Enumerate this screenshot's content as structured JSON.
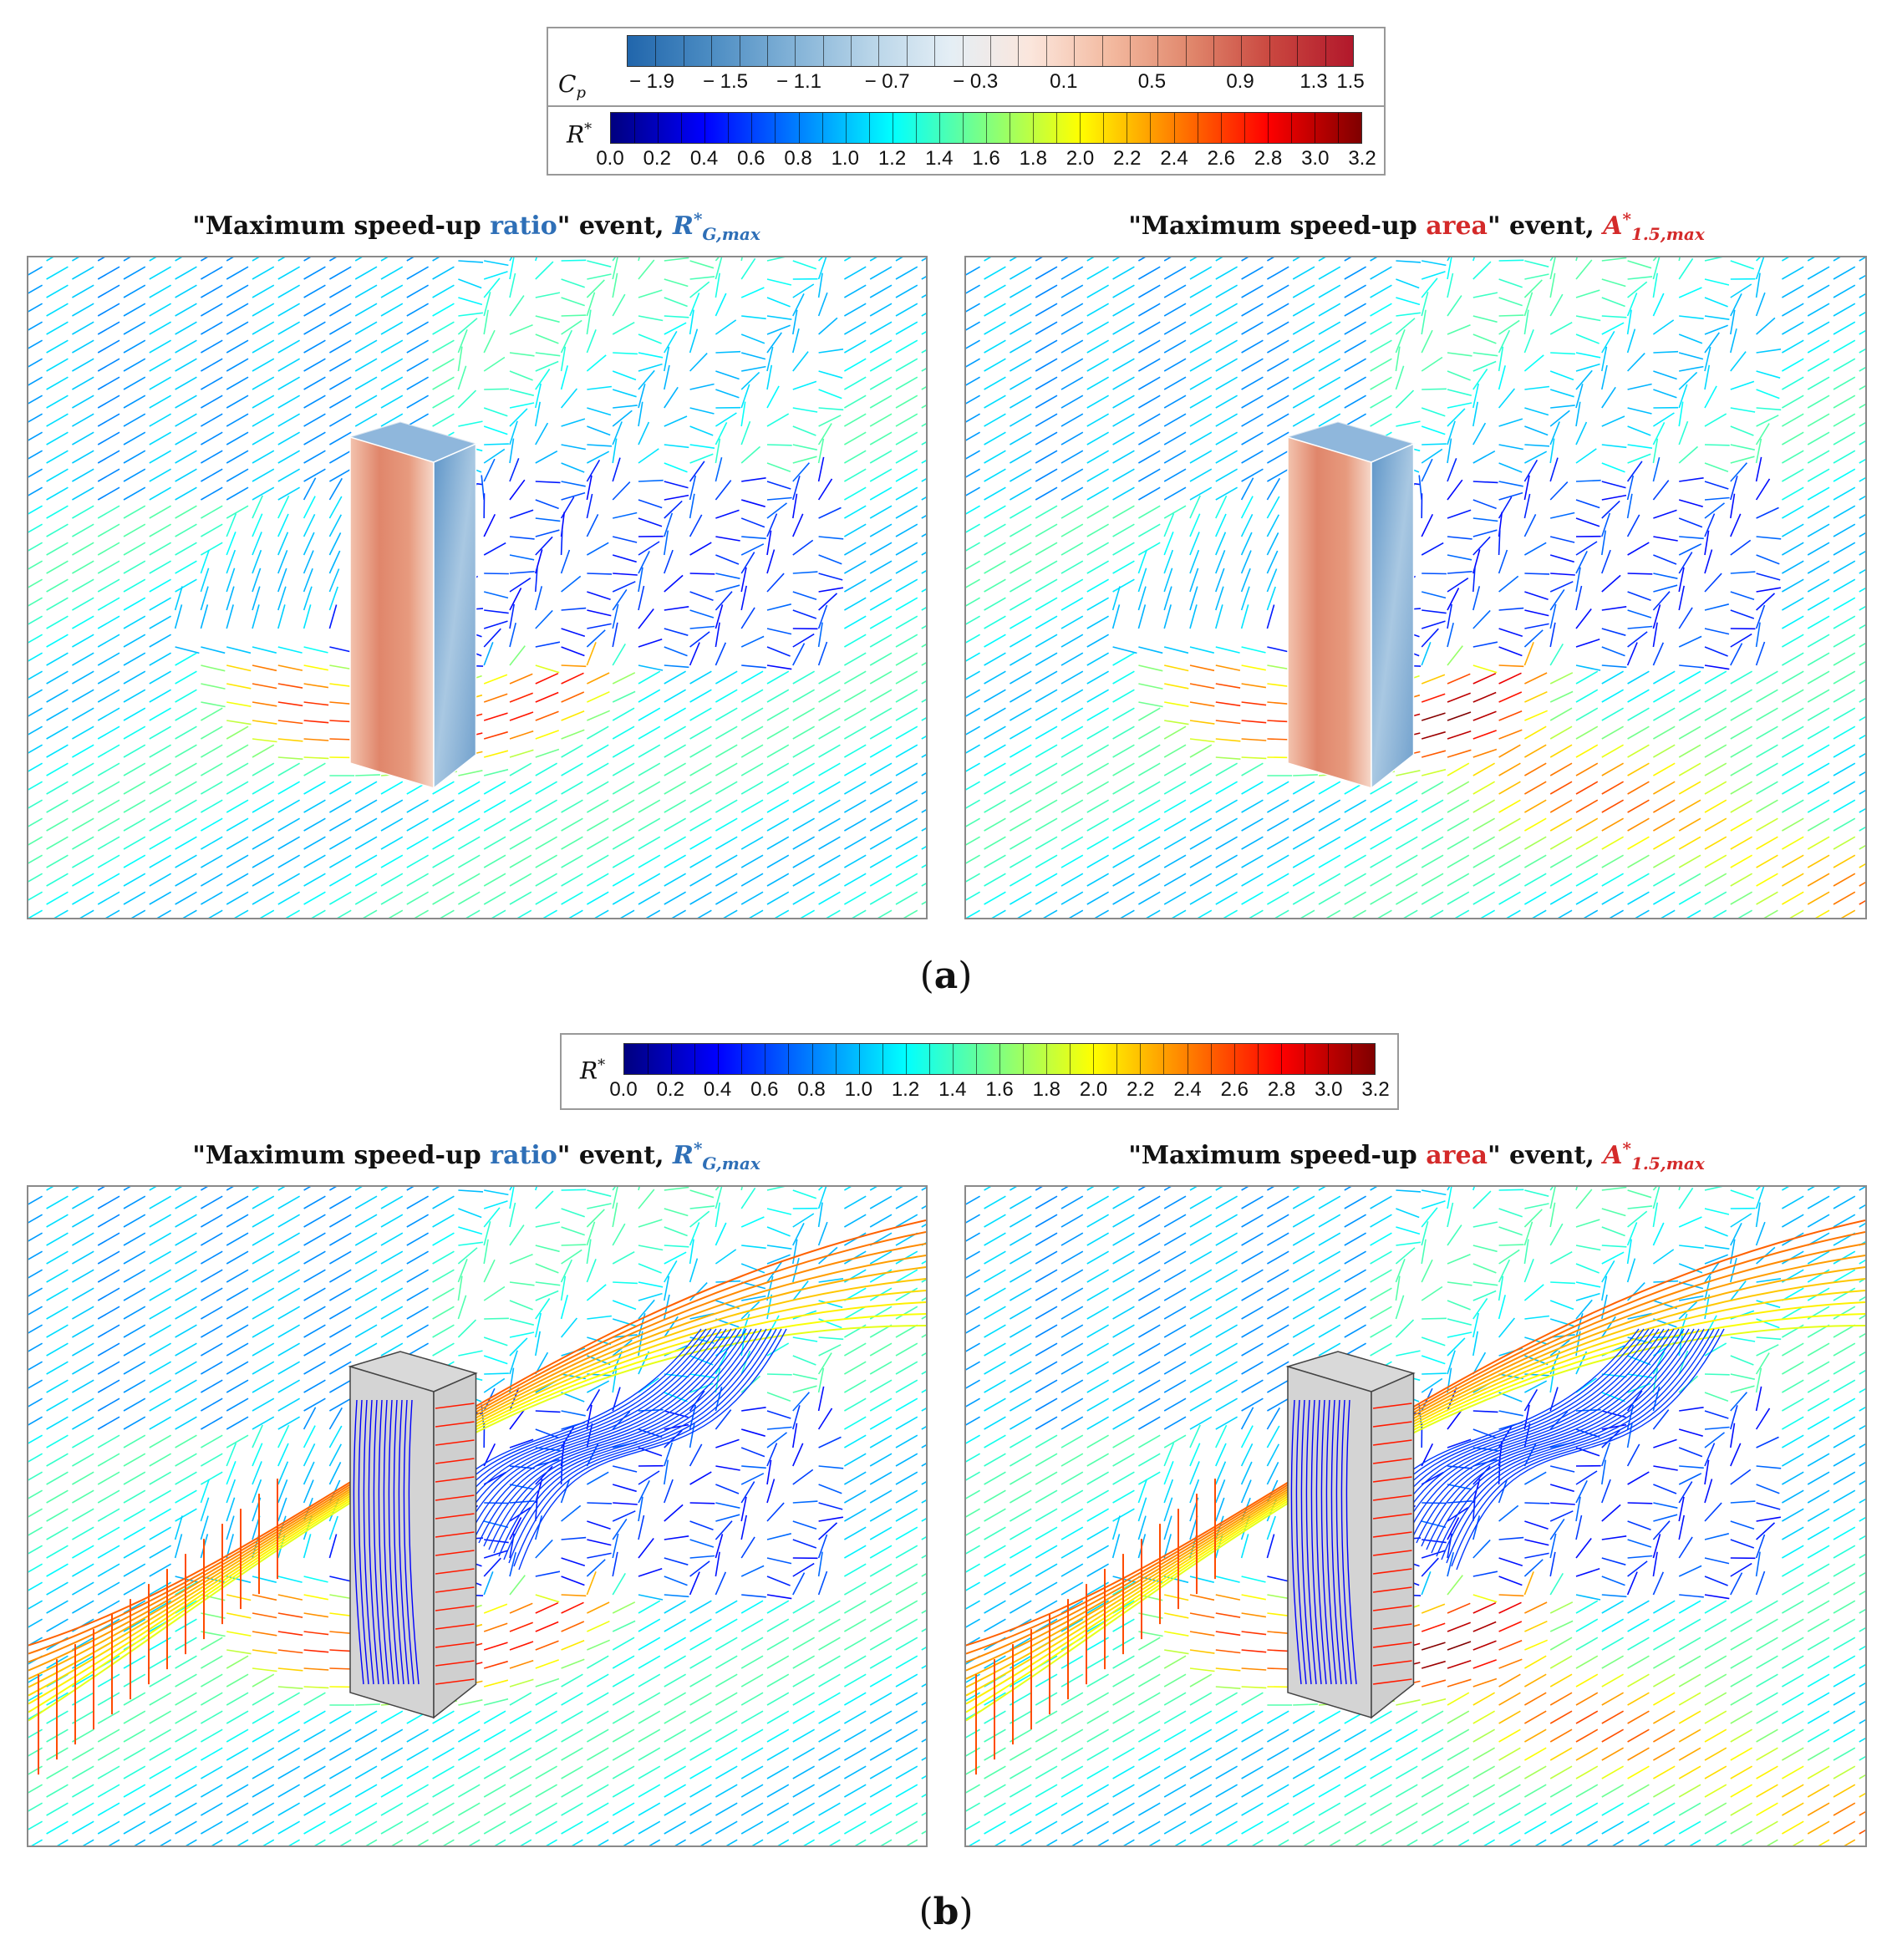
{
  "legend_a": {
    "cp_symbol": "C",
    "cp_sub": "p",
    "cp_ticks": [
      "− 1.9",
      "− 1.5",
      "− 1.1",
      "− 0.7",
      "− 0.3",
      "0.1",
      "0.5",
      "0.9",
      "1.3",
      "1.5"
    ],
    "r_symbol": "R",
    "r_sup": "*",
    "r_ticks": [
      "0.0",
      "0.2",
      "0.4",
      "0.6",
      "0.8",
      "1.0",
      "1.2",
      "1.4",
      "1.6",
      "1.8",
      "2.0",
      "2.2",
      "2.4",
      "2.6",
      "2.8",
      "3.0",
      "3.2"
    ]
  },
  "legend_b": {
    "r_symbol": "R",
    "r_sup": "*",
    "r_ticks": [
      "0.0",
      "0.2",
      "0.4",
      "0.6",
      "0.8",
      "1.0",
      "1.2",
      "1.4",
      "1.6",
      "1.8",
      "2.0",
      "2.2",
      "2.4",
      "2.6",
      "2.8",
      "3.0",
      "3.2"
    ]
  },
  "titles": {
    "ratio": {
      "q1": "\"Maximum speed-up ",
      "kw": "ratio",
      "q2": "\" event, ",
      "sym": "R",
      "sup": "*",
      "sub": "G,max"
    },
    "area": {
      "q1": "\"Maximum speed-up ",
      "kw": "area",
      "q2": "\" event, ",
      "sym": "A",
      "sup": "*",
      "sub": "1.5,max"
    }
  },
  "fig_labels": {
    "a": "a",
    "b": "b"
  },
  "colors": {
    "cp_scale": [
      "#2166ac",
      "#4a8bc2",
      "#7fb0d6",
      "#b7d4e8",
      "#e4eef5",
      "#fbe6dc",
      "#f3b99f",
      "#e0866b",
      "#c9463f",
      "#b2182b"
    ],
    "r_scale": [
      "#00007f",
      "#0000ff",
      "#0080ff",
      "#00ffff",
      "#80ff80",
      "#ffff00",
      "#ff8000",
      "#ff0000",
      "#7f0000"
    ],
    "ratio_keyword": "#2e6fb7",
    "area_keyword": "#d42a2a"
  }
}
